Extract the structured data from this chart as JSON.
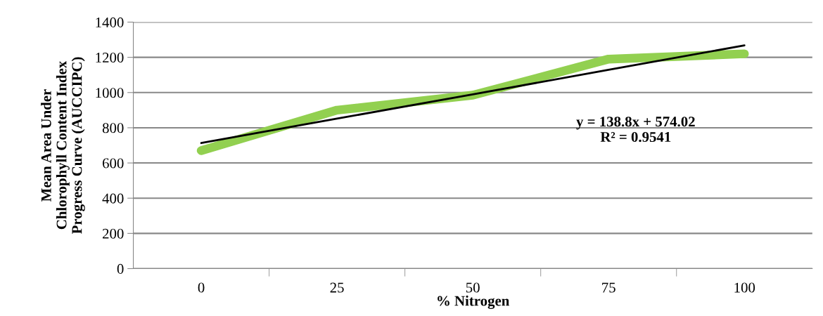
{
  "chart_data": {
    "type": "line",
    "xlabel": "% Nitrogen",
    "ylabel": "Mean Area Under\nChlorophyll Content Index\nProgress Curve (AUCCIPC)",
    "categories": [
      "0",
      "25",
      "50",
      "75",
      "100"
    ],
    "series": [
      {
        "color": "#92d050",
        "values": [
          670,
          900,
          985,
          1190,
          1220
        ]
      },
      {
        "type": "line",
        "color": "#000000",
        "values": [
          713,
          852,
          990,
          1129,
          1268
        ]
      }
    ],
    "annotations": [
      "y = 138.8x + 574.02\nR² = 0.9541"
    ],
    "ylim": [
      0,
      1400
    ],
    "yticks": [
      0,
      200,
      400,
      600,
      800,
      1000,
      1200,
      1400
    ],
    "grid": "y",
    "legend": false,
    "marker": "none",
    "line_style": "solid"
  }
}
